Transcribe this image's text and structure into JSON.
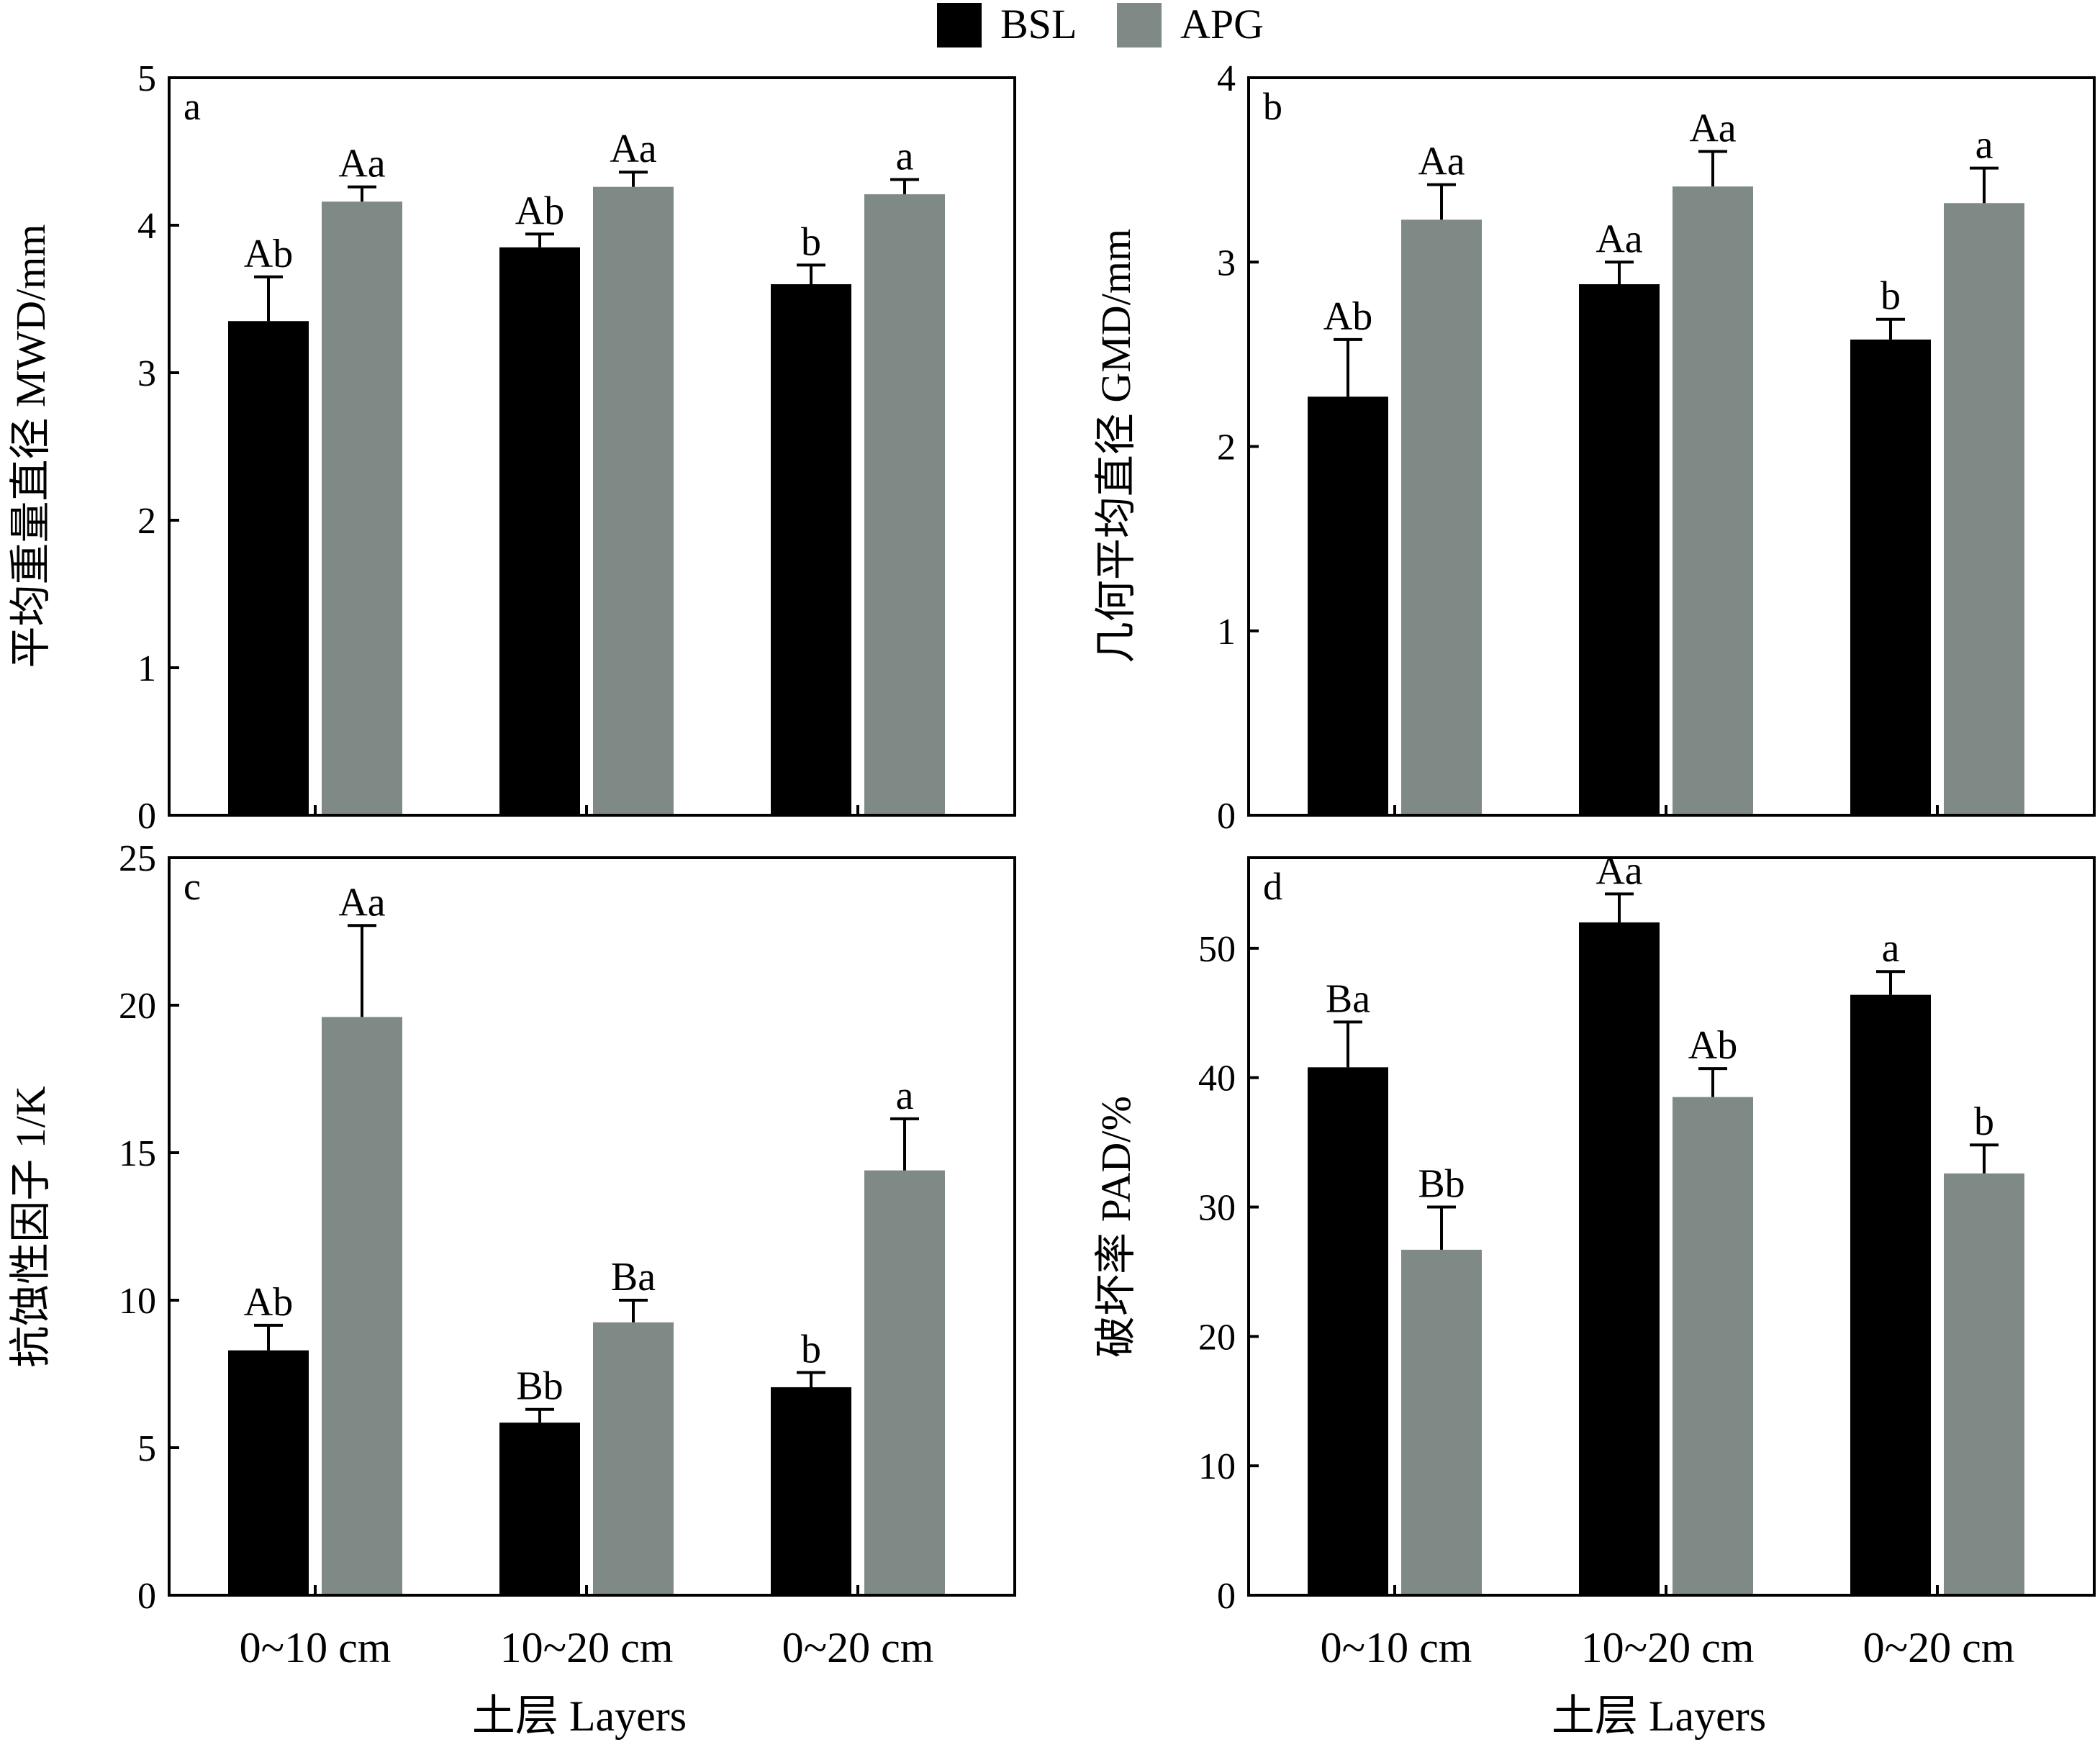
{
  "legend": [
    {
      "name": "BSL",
      "color": "#000000"
    },
    {
      "name": "APG",
      "color": "#7f8a87"
    }
  ],
  "shared_xlabel": "土层 Layers",
  "chart_data": [
    {
      "type": "bar",
      "panel": "a",
      "categories": [
        "0~10 cm",
        "10~20 cm",
        "0~20 cm"
      ],
      "ylabel": "平均重量直径 MWD/mm",
      "ylim": [
        0,
        5
      ],
      "yticks": [
        0,
        1,
        2,
        3,
        4,
        5
      ],
      "series": [
        {
          "name": "BSL",
          "values": [
            3.35,
            3.85,
            3.6
          ],
          "errors": [
            0.3,
            0.09,
            0.13
          ],
          "labels": [
            "Ab",
            "Ab",
            "b"
          ]
        },
        {
          "name": "APG",
          "values": [
            4.16,
            4.26,
            4.21
          ],
          "errors": [
            0.1,
            0.1,
            0.1
          ],
          "labels": [
            "Aa",
            "Aa",
            "a"
          ]
        }
      ]
    },
    {
      "type": "bar",
      "panel": "b",
      "categories": [
        "0~10 cm",
        "10~20 cm",
        "0~20 cm"
      ],
      "ylabel": "几何平均直径 GMD/mm",
      "ylim": [
        0,
        4
      ],
      "yticks": [
        0,
        1,
        2,
        3,
        4
      ],
      "series": [
        {
          "name": "BSL",
          "values": [
            2.27,
            2.88,
            2.58
          ],
          "errors": [
            0.31,
            0.12,
            0.11
          ],
          "labels": [
            "Ab",
            "Aa",
            "b"
          ]
        },
        {
          "name": "APG",
          "values": [
            3.23,
            3.41,
            3.32
          ],
          "errors": [
            0.19,
            0.19,
            0.19
          ],
          "labels": [
            "Aa",
            "Aa",
            "a"
          ]
        }
      ]
    },
    {
      "type": "bar",
      "panel": "c",
      "categories": [
        "0~10 cm",
        "10~20 cm",
        "0~20 cm"
      ],
      "ylabel": "抗蚀性因子 1/K",
      "ylim": [
        0,
        25
      ],
      "yticks": [
        0,
        5,
        10,
        15,
        20,
        25
      ],
      "series": [
        {
          "name": "BSL",
          "values": [
            8.3,
            5.85,
            7.05
          ],
          "errors": [
            0.85,
            0.45,
            0.5
          ],
          "labels": [
            "Ab",
            "Bb",
            "b"
          ]
        },
        {
          "name": "APG",
          "values": [
            19.6,
            9.25,
            14.4
          ],
          "errors": [
            3.1,
            0.75,
            1.75
          ],
          "labels": [
            "Aa",
            "Ba",
            "a"
          ]
        }
      ]
    },
    {
      "type": "bar",
      "panel": "d",
      "categories": [
        "0~10 cm",
        "10~20 cm",
        "0~20 cm"
      ],
      "ylabel": "破坏率 PAD/%",
      "ylim": [
        0,
        57
      ],
      "yticks": [
        0,
        10,
        20,
        30,
        40,
        50
      ],
      "series": [
        {
          "name": "BSL",
          "values": [
            40.8,
            52.0,
            46.4
          ],
          "errors": [
            3.5,
            2.2,
            1.8
          ],
          "labels": [
            "Ba",
            "Aa",
            "a"
          ]
        },
        {
          "name": "APG",
          "values": [
            26.7,
            38.5,
            32.6
          ],
          "errors": [
            3.3,
            2.2,
            2.2
          ],
          "labels": [
            "Bb",
            "Ab",
            "b"
          ]
        }
      ]
    }
  ]
}
